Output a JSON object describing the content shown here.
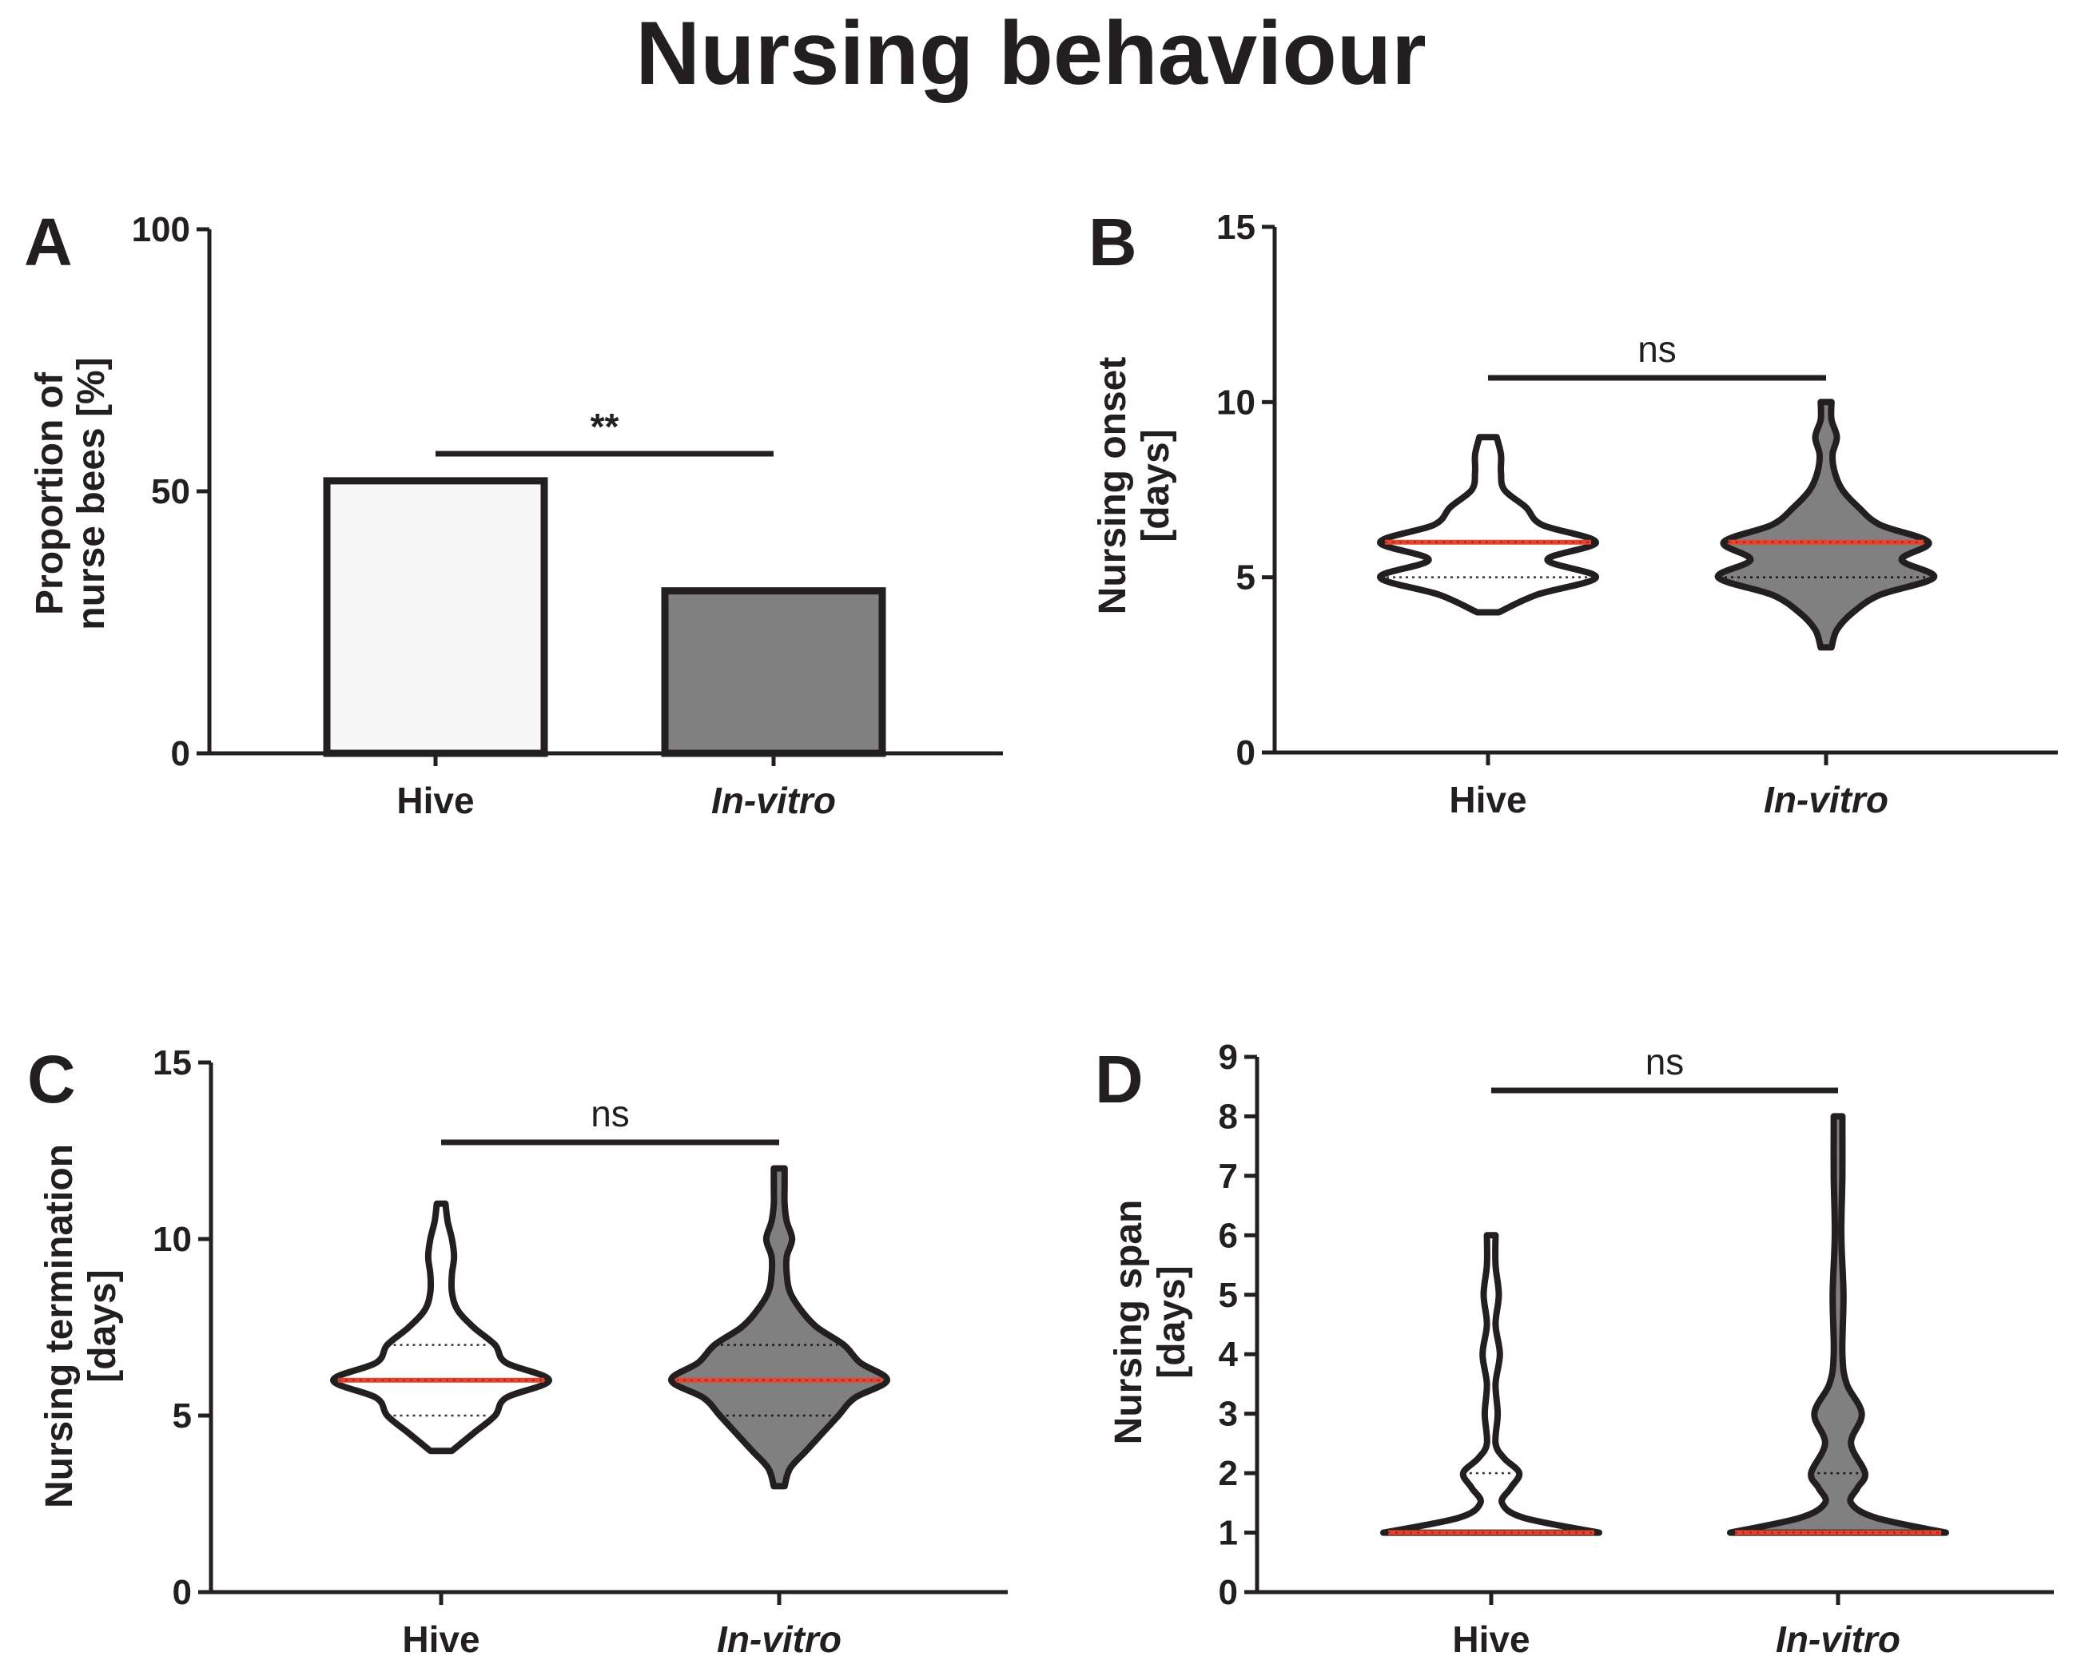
{
  "title": "Nursing behaviour",
  "colors": {
    "hive_fill": "#f7f7f7",
    "invitro_fill": "#808080",
    "median": "#e8432e",
    "axis": "#231f20"
  },
  "chart_data": [
    {
      "panel": "A",
      "type": "bar",
      "ylabel": [
        "Proportion of",
        "nurse bees [%]"
      ],
      "ylim": [
        0,
        100
      ],
      "yticks": [
        0,
        50,
        100
      ],
      "tick_labels": [
        "0",
        "50",
        "100"
      ],
      "categories": [
        "Hive",
        "In-vitro"
      ],
      "values": [
        52,
        31
      ],
      "significance": "**",
      "grid": false
    },
    {
      "panel": "B",
      "type": "violin",
      "ylabel": [
        "Nursing onset",
        "[days]"
      ],
      "ylim": [
        0,
        15
      ],
      "yticks": [
        0,
        5,
        10,
        15
      ],
      "tick_labels": [
        "0",
        "5",
        "10",
        "15"
      ],
      "categories": [
        "Hive",
        "In-vitro"
      ],
      "violins": [
        {
          "range": [
            4,
            9
          ],
          "median": 6,
          "quartiles": [
            5,
            6
          ],
          "density": [
            [
              4,
              0.1
            ],
            [
              4.5,
              0.45
            ],
            [
              5,
              1.0
            ],
            [
              5.5,
              0.55
            ],
            [
              6,
              1.0
            ],
            [
              6.5,
              0.5
            ],
            [
              7,
              0.35
            ],
            [
              7.5,
              0.15
            ],
            [
              8,
              0.12
            ],
            [
              8.5,
              0.12
            ],
            [
              9,
              0.08
            ]
          ]
        },
        {
          "range": [
            3,
            10
          ],
          "median": 6,
          "quartiles": [
            5,
            6
          ],
          "density": [
            [
              3,
              0.05
            ],
            [
              3.5,
              0.1
            ],
            [
              4,
              0.25
            ],
            [
              4.5,
              0.5
            ],
            [
              5,
              1.0
            ],
            [
              5.5,
              0.7
            ],
            [
              6,
              0.95
            ],
            [
              6.5,
              0.5
            ],
            [
              7,
              0.3
            ],
            [
              7.5,
              0.15
            ],
            [
              8,
              0.08
            ],
            [
              8.5,
              0.06
            ],
            [
              9,
              0.1
            ],
            [
              9.5,
              0.05
            ],
            [
              10,
              0.05
            ]
          ]
        }
      ],
      "significance": "ns",
      "grid": false
    },
    {
      "panel": "C",
      "type": "violin",
      "ylabel": [
        "Nursing termination",
        "[days]"
      ],
      "ylim": [
        0,
        15
      ],
      "yticks": [
        0,
        5,
        10,
        15
      ],
      "tick_labels": [
        "0",
        "5",
        "10",
        "15"
      ],
      "categories": [
        "Hive",
        "In-vitro"
      ],
      "violins": [
        {
          "range": [
            4,
            11
          ],
          "median": 6,
          "quartiles": [
            5,
            7
          ],
          "density": [
            [
              4,
              0.1
            ],
            [
              4.5,
              0.3
            ],
            [
              5,
              0.5
            ],
            [
              5.5,
              0.6
            ],
            [
              6,
              1.0
            ],
            [
              6.5,
              0.6
            ],
            [
              7,
              0.5
            ],
            [
              7.5,
              0.3
            ],
            [
              8,
              0.15
            ],
            [
              8.5,
              0.1
            ],
            [
              9,
              0.1
            ],
            [
              9.5,
              0.12
            ],
            [
              10,
              0.1
            ],
            [
              10.5,
              0.06
            ],
            [
              11,
              0.04
            ]
          ]
        },
        {
          "range": [
            3,
            12
          ],
          "median": 6,
          "quartiles": [
            5,
            7
          ],
          "density": [
            [
              3,
              0.05
            ],
            [
              3.5,
              0.1
            ],
            [
              4,
              0.25
            ],
            [
              4.5,
              0.4
            ],
            [
              5,
              0.55
            ],
            [
              5.5,
              0.7
            ],
            [
              6,
              1.0
            ],
            [
              6.5,
              0.75
            ],
            [
              7,
              0.6
            ],
            [
              7.5,
              0.35
            ],
            [
              8,
              0.2
            ],
            [
              8.5,
              0.1
            ],
            [
              9,
              0.07
            ],
            [
              9.5,
              0.07
            ],
            [
              10,
              0.12
            ],
            [
              10.5,
              0.07
            ],
            [
              11,
              0.05
            ],
            [
              11.5,
              0.05
            ],
            [
              12,
              0.05
            ]
          ]
        }
      ],
      "significance": "ns",
      "grid": false
    },
    {
      "panel": "D",
      "type": "violin",
      "ylabel": [
        "Nursing span",
        "[days]"
      ],
      "ylim": [
        0,
        9
      ],
      "yticks": [
        0,
        1,
        2,
        3,
        4,
        5,
        6,
        7,
        8,
        9
      ],
      "tick_labels": [
        "0",
        "1",
        "2",
        "3",
        "4",
        "5",
        "6",
        "7",
        "8",
        "9"
      ],
      "categories": [
        "Hive",
        "In-vitro"
      ],
      "violins": [
        {
          "range": [
            1,
            6
          ],
          "median": 1,
          "quartiles": [
            1,
            2
          ],
          "density": [
            [
              1,
              1.0
            ],
            [
              1.25,
              0.3
            ],
            [
              1.5,
              0.1
            ],
            [
              1.75,
              0.18
            ],
            [
              2,
              0.26
            ],
            [
              2.25,
              0.12
            ],
            [
              2.5,
              0.04
            ],
            [
              3,
              0.06
            ],
            [
              3.5,
              0.04
            ],
            [
              4,
              0.08
            ],
            [
              4.5,
              0.04
            ],
            [
              5,
              0.07
            ],
            [
              5.5,
              0.04
            ],
            [
              6,
              0.04
            ]
          ]
        },
        {
          "range": [
            1,
            8
          ],
          "median": 1,
          "quartiles": [
            1,
            2
          ],
          "density": [
            [
              1,
              1.0
            ],
            [
              1.25,
              0.35
            ],
            [
              1.5,
              0.12
            ],
            [
              1.75,
              0.18
            ],
            [
              2,
              0.25
            ],
            [
              2.5,
              0.12
            ],
            [
              3,
              0.22
            ],
            [
              3.5,
              0.08
            ],
            [
              4,
              0.04
            ],
            [
              5,
              0.05
            ],
            [
              6,
              0.03
            ],
            [
              7,
              0.04
            ],
            [
              8,
              0.04
            ]
          ]
        }
      ],
      "significance": "ns",
      "grid": false
    }
  ]
}
